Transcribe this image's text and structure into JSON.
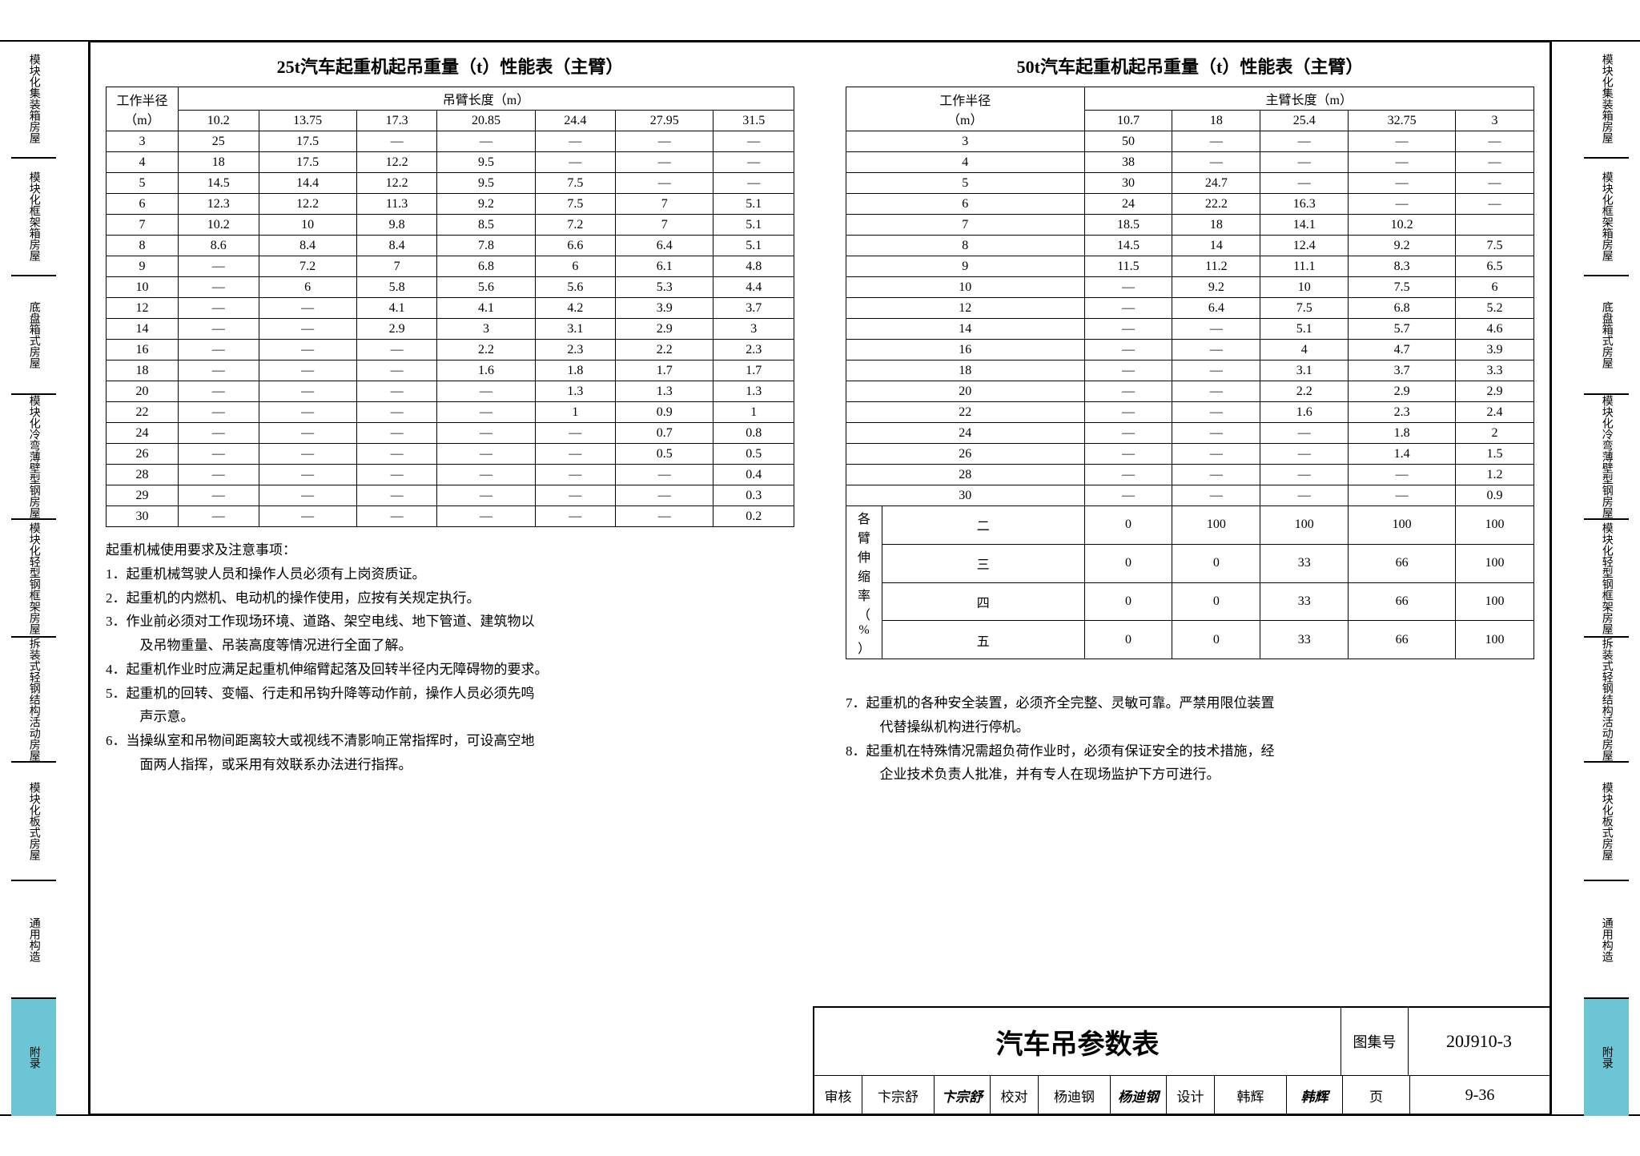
{
  "tabs": [
    "模块化集装箱房屋",
    "模块化框架箱房屋",
    "底盘箱式房屋",
    "模块化冷弯薄壁型钢房屋",
    "模块化轻型钢框架房屋",
    "拆装式轻钢结构活动房屋",
    "模块化板式房屋",
    "通用构造",
    "附录"
  ],
  "activeTab": 8,
  "t25": {
    "title": "25t汽车起重机起吊重量（t）性能表（主臂）",
    "rowHeader": "工作半径\n（m）",
    "colHeader": "吊臂长度（m）",
    "cols": [
      "10.2",
      "13.75",
      "17.3",
      "20.85",
      "24.4",
      "27.95",
      "31.5"
    ],
    "rows": [
      [
        "3",
        "25",
        "17.5",
        "—",
        "—",
        "—",
        "—",
        "—"
      ],
      [
        "4",
        "18",
        "17.5",
        "12.2",
        "9.5",
        "—",
        "—",
        "—"
      ],
      [
        "5",
        "14.5",
        "14.4",
        "12.2",
        "9.5",
        "7.5",
        "—",
        "—"
      ],
      [
        "6",
        "12.3",
        "12.2",
        "11.3",
        "9.2",
        "7.5",
        "7",
        "5.1"
      ],
      [
        "7",
        "10.2",
        "10",
        "9.8",
        "8.5",
        "7.2",
        "7",
        "5.1"
      ],
      [
        "8",
        "8.6",
        "8.4",
        "8.4",
        "7.8",
        "6.6",
        "6.4",
        "5.1"
      ],
      [
        "9",
        "—",
        "7.2",
        "7",
        "6.8",
        "6",
        "6.1",
        "4.8"
      ],
      [
        "10",
        "—",
        "6",
        "5.8",
        "5.6",
        "5.6",
        "5.3",
        "4.4"
      ],
      [
        "12",
        "—",
        "—",
        "4.1",
        "4.1",
        "4.2",
        "3.9",
        "3.7"
      ],
      [
        "14",
        "—",
        "—",
        "2.9",
        "3",
        "3.1",
        "2.9",
        "3"
      ],
      [
        "16",
        "—",
        "—",
        "—",
        "2.2",
        "2.3",
        "2.2",
        "2.3"
      ],
      [
        "18",
        "—",
        "—",
        "—",
        "1.6",
        "1.8",
        "1.7",
        "1.7"
      ],
      [
        "20",
        "—",
        "—",
        "—",
        "—",
        "1.3",
        "1.3",
        "1.3"
      ],
      [
        "22",
        "—",
        "—",
        "—",
        "—",
        "1",
        "0.9",
        "1"
      ],
      [
        "24",
        "—",
        "—",
        "—",
        "—",
        "—",
        "0.7",
        "0.8"
      ],
      [
        "26",
        "—",
        "—",
        "—",
        "—",
        "—",
        "0.5",
        "0.5"
      ],
      [
        "28",
        "—",
        "—",
        "—",
        "—",
        "—",
        "—",
        "0.4"
      ],
      [
        "29",
        "—",
        "—",
        "—",
        "—",
        "—",
        "—",
        "0.3"
      ],
      [
        "30",
        "—",
        "—",
        "—",
        "—",
        "—",
        "—",
        "0.2"
      ]
    ]
  },
  "t50": {
    "title": "50t汽车起重机起吊重量（t）性能表（主臂）",
    "rowHeader": "工作半径\n（m）",
    "colHeader": "主臂长度（m）",
    "cols": [
      "10.7",
      "18",
      "25.4",
      "32.75",
      "3"
    ],
    "rows": [
      [
        "3",
        "50",
        "—",
        "—",
        "—",
        "—"
      ],
      [
        "4",
        "38",
        "—",
        "—",
        "—",
        "—"
      ],
      [
        "5",
        "30",
        "24.7",
        "—",
        "—",
        "—"
      ],
      [
        "6",
        "24",
        "22.2",
        "16.3",
        "—",
        "—"
      ],
      [
        "7",
        "18.5",
        "18",
        "14.1",
        "10.2",
        ""
      ],
      [
        "8",
        "14.5",
        "14",
        "12.4",
        "9.2",
        "7.5"
      ],
      [
        "9",
        "11.5",
        "11.2",
        "11.1",
        "8.3",
        "6.5"
      ],
      [
        "10",
        "—",
        "9.2",
        "10",
        "7.5",
        "6"
      ],
      [
        "12",
        "—",
        "6.4",
        "7.5",
        "6.8",
        "5.2"
      ],
      [
        "14",
        "—",
        "—",
        "5.1",
        "5.7",
        "4.6"
      ],
      [
        "16",
        "—",
        "—",
        "4",
        "4.7",
        "3.9"
      ],
      [
        "18",
        "—",
        "—",
        "3.1",
        "3.7",
        "3.3"
      ],
      [
        "20",
        "—",
        "—",
        "2.2",
        "2.9",
        "2.9"
      ],
      [
        "22",
        "—",
        "—",
        "1.6",
        "2.3",
        "2.4"
      ],
      [
        "24",
        "—",
        "—",
        "—",
        "1.8",
        "2"
      ],
      [
        "26",
        "—",
        "—",
        "—",
        "1.4",
        "1.5"
      ],
      [
        "28",
        "—",
        "—",
        "—",
        "—",
        "1.2"
      ],
      [
        "30",
        "—",
        "—",
        "—",
        "—",
        "0.9"
      ]
    ],
    "extHeader": "各臂伸缩率（%）",
    "ext": [
      [
        "二",
        "0",
        "100",
        "100",
        "100",
        "100"
      ],
      [
        "三",
        "0",
        "0",
        "33",
        "66",
        "100"
      ],
      [
        "四",
        "0",
        "0",
        "33",
        "66",
        "100"
      ],
      [
        "五",
        "0",
        "0",
        "33",
        "66",
        "100"
      ]
    ]
  },
  "notesTitle": "起重机械使用要求及注意事项：",
  "notesL": [
    "1．起重机械驾驶人员和操作人员必须有上岗资质证。",
    "2．起重机的内燃机、电动机的操作使用，应按有关规定执行。",
    "3．作业前必须对工作现场环境、道路、架空电线、地下管道、建筑物以",
    "　及吊物重量、吊装高度等情况进行全面了解。",
    "4．起重机作业时应满足起重机伸缩臂起落及回转半径内无障碍物的要求。",
    "5．起重机的回转、变幅、行走和吊钩升降等动作前，操作人员必须先鸣",
    "　声示意。",
    "6．当操纵室和吊物间距离较大或视线不清影响正常指挥时，可设高空地",
    "　面两人指挥，或采用有效联系办法进行指挥。"
  ],
  "notesR": [
    "7．起重机的各种安全装置，必须齐全完整、灵敏可靠。严禁用限位装置",
    "　代替操纵机构进行停机。",
    "8．起重机在特殊情况需超负荷作业时，必须有保证安全的技术措施，经",
    "　企业技术负责人批准，并有专人在现场监护下方可进行。"
  ],
  "titleBlock": {
    "main": "汽车吊参数表",
    "codeLabel": "图集号",
    "code": "20J910-3",
    "審核l": "审核",
    "审核v": "卞宗舒",
    "审核s": "卞宗舒",
    "校对l": "校对",
    "校对v": "杨迪钢",
    "校对s": "杨迪钢",
    "设计l": "设计",
    "设计v": "韩辉",
    "设计s": "韩辉",
    "pageLabel": "页",
    "page": "9-36"
  }
}
